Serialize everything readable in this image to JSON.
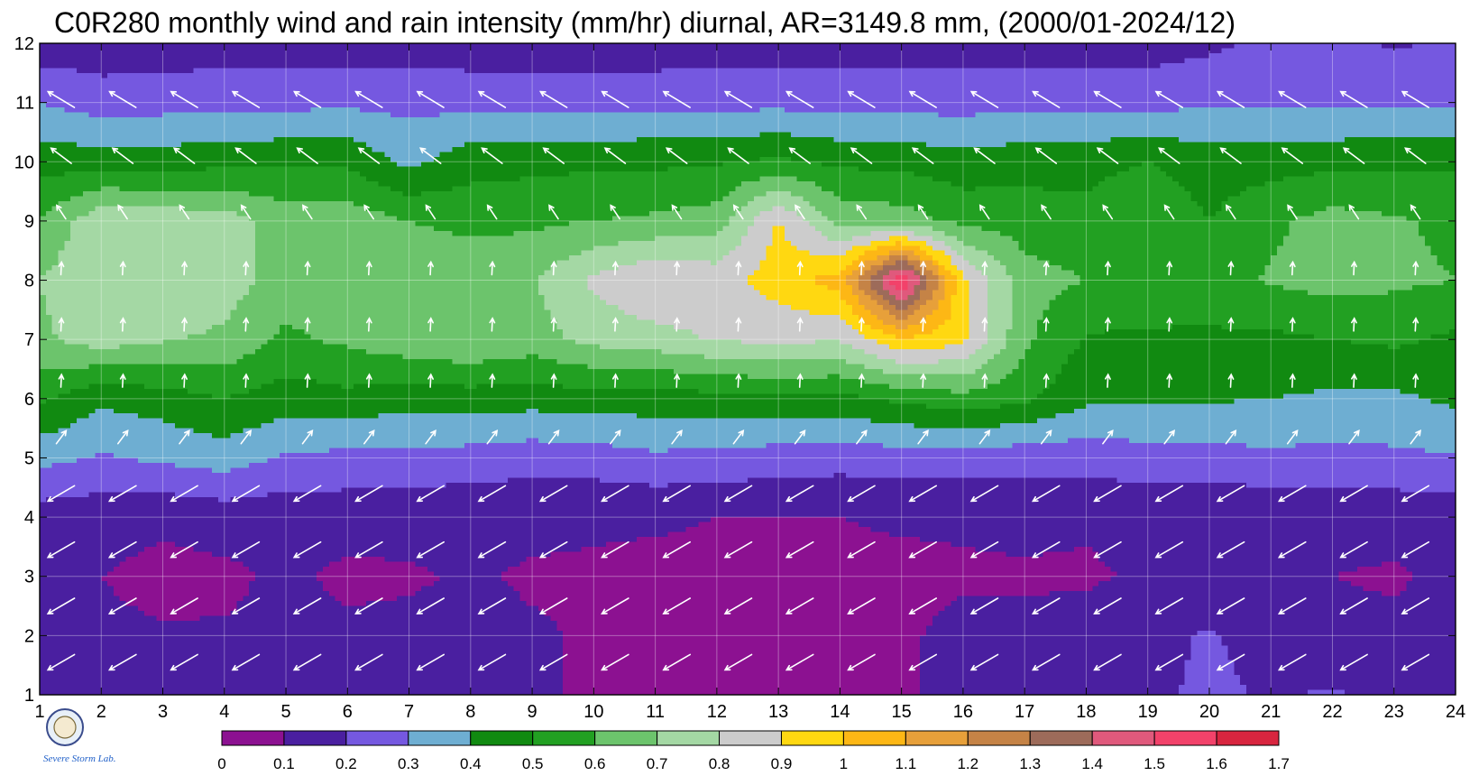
{
  "chart_data": {
    "type": "heatmap",
    "title": "C0R280 monthly wind and rain intensity (mm/hr) diurnal, AR=3149.8 mm, (2000/01-2024/12)",
    "x_ticks": [
      "1",
      "2",
      "3",
      "4",
      "5",
      "6",
      "7",
      "8",
      "9",
      "10",
      "11",
      "12",
      "13",
      "14",
      "15",
      "16",
      "17",
      "18",
      "19",
      "20",
      "21",
      "22",
      "23",
      "24"
    ],
    "y_ticks": [
      "1",
      "2",
      "3",
      "4",
      "5",
      "6",
      "7",
      "8",
      "9",
      "10",
      "11",
      "12"
    ],
    "xlim": [
      1,
      24
    ],
    "ylim": [
      1,
      12
    ],
    "colorbar": {
      "labels": [
        "0",
        "0.1",
        "0.2",
        "0.3",
        "0.4",
        "0.5",
        "0.6",
        "0.7",
        "0.8",
        "0.9",
        "1",
        "1.1",
        "1.2",
        "1.3",
        "1.4",
        "1.5",
        "1.6",
        "1.7"
      ],
      "colors": [
        "#8c1191",
        "#4a1fa0",
        "#7558e0",
        "#6eaed2",
        "#118a11",
        "#22a022",
        "#6cc46c",
        "#a4d8a4",
        "#cccccc",
        "#ffd811",
        "#fdb715",
        "#e7a03a",
        "#c58346",
        "#9d6b5a",
        "#e0597c",
        "#f2426a",
        "#d8253f"
      ]
    },
    "grid": true,
    "wind_vectors": "white arrows, westward/north-east flow at low rows, south-east flow in mid rows",
    "rain_intensity": {
      "x": [
        1,
        2,
        3,
        4,
        5,
        6,
        7,
        8,
        9,
        10,
        11,
        12,
        13,
        14,
        15,
        16,
        17,
        18,
        19,
        20,
        21,
        22,
        23,
        24
      ],
      "y": [
        1,
        2,
        3,
        4,
        5,
        6,
        7,
        8,
        9,
        10,
        11,
        12
      ],
      "z": [
        [
          0.12,
          0.12,
          0.11,
          0.11,
          0.12,
          0.12,
          0.12,
          0.12,
          0.11,
          0.09,
          0.08,
          0.08,
          0.08,
          0.08,
          0.09,
          0.12,
          0.12,
          0.13,
          0.18,
          0.22,
          0.19,
          0.21,
          0.18,
          0.15
        ],
        [
          0.12,
          0.12,
          0.11,
          0.11,
          0.12,
          0.12,
          0.12,
          0.12,
          0.11,
          0.09,
          0.09,
          0.09,
          0.09,
          0.09,
          0.09,
          0.12,
          0.12,
          0.13,
          0.17,
          0.21,
          0.16,
          0.12,
          0.12,
          0.11
        ],
        [
          0.12,
          0.1,
          0.07,
          0.08,
          0.12,
          0.08,
          0.09,
          0.11,
          0.09,
          0.09,
          0.08,
          0.08,
          0.08,
          0.08,
          0.08,
          0.09,
          0.09,
          0.09,
          0.11,
          0.12,
          0.12,
          0.1,
          0.09,
          0.12
        ],
        [
          0.15,
          0.14,
          0.12,
          0.14,
          0.13,
          0.14,
          0.13,
          0.12,
          0.12,
          0.11,
          0.11,
          0.1,
          0.1,
          0.1,
          0.11,
          0.11,
          0.12,
          0.11,
          0.12,
          0.11,
          0.12,
          0.13,
          0.13,
          0.14
        ],
        [
          0.33,
          0.29,
          0.32,
          0.35,
          0.29,
          0.27,
          0.27,
          0.26,
          0.24,
          0.25,
          0.28,
          0.27,
          0.25,
          0.24,
          0.25,
          0.24,
          0.24,
          0.24,
          0.26,
          0.26,
          0.28,
          0.27,
          0.28,
          0.29
        ],
        [
          0.52,
          0.42,
          0.45,
          0.5,
          0.45,
          0.47,
          0.44,
          0.45,
          0.44,
          0.46,
          0.45,
          0.46,
          0.48,
          0.47,
          0.52,
          0.56,
          0.52,
          0.42,
          0.41,
          0.41,
          0.4,
          0.38,
          0.38,
          0.42
        ],
        [
          0.68,
          0.75,
          0.71,
          0.68,
          0.58,
          0.62,
          0.67,
          0.7,
          0.66,
          0.73,
          0.76,
          0.81,
          0.82,
          0.81,
          0.99,
          0.93,
          0.62,
          0.49,
          0.48,
          0.48,
          0.48,
          0.5,
          0.52,
          0.48
        ],
        [
          0.7,
          0.79,
          0.8,
          0.75,
          0.65,
          0.7,
          0.7,
          0.68,
          0.69,
          0.82,
          0.9,
          0.86,
          0.95,
          1.05,
          1.62,
          0.92,
          0.64,
          0.6,
          0.58,
          0.57,
          0.61,
          0.64,
          0.62,
          0.6
        ],
        [
          0.6,
          0.78,
          0.77,
          0.75,
          0.65,
          0.66,
          0.6,
          0.57,
          0.58,
          0.6,
          0.62,
          0.65,
          0.91,
          0.66,
          0.65,
          0.57,
          0.55,
          0.53,
          0.58,
          0.5,
          0.58,
          0.64,
          0.61,
          0.58
        ],
        [
          0.46,
          0.45,
          0.45,
          0.47,
          0.48,
          0.48,
          0.37,
          0.46,
          0.47,
          0.48,
          0.48,
          0.49,
          0.52,
          0.48,
          0.47,
          0.44,
          0.46,
          0.47,
          0.5,
          0.45,
          0.46,
          0.47,
          0.48,
          0.48
        ],
        [
          0.3,
          0.25,
          0.26,
          0.27,
          0.27,
          0.28,
          0.27,
          0.27,
          0.27,
          0.26,
          0.27,
          0.27,
          0.27,
          0.26,
          0.26,
          0.26,
          0.27,
          0.26,
          0.27,
          0.28,
          0.28,
          0.28,
          0.28,
          0.29
        ],
        [
          0.14,
          0.14,
          0.14,
          0.15,
          0.15,
          0.14,
          0.15,
          0.14,
          0.14,
          0.14,
          0.14,
          0.15,
          0.15,
          0.15,
          0.15,
          0.15,
          0.15,
          0.15,
          0.15,
          0.18,
          0.22,
          0.22,
          0.19,
          0.21
        ]
      ]
    }
  },
  "logo": {
    "lab_text": "Severe Storm Lab."
  }
}
